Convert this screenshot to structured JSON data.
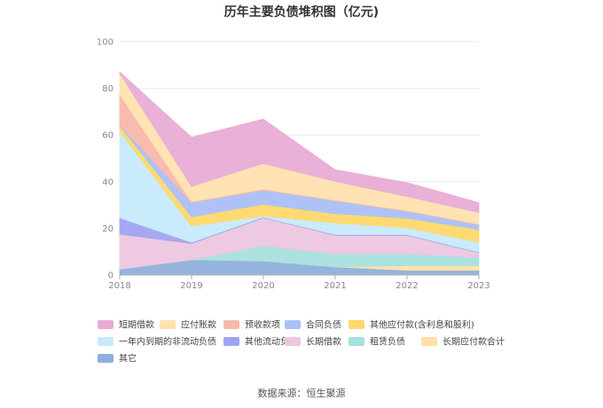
{
  "chart_data": {
    "type": "area",
    "stacked": true,
    "title": "历年主要负债堆积图（亿元)",
    "xlabel": "",
    "ylabel": "",
    "categories": [
      "2018",
      "2019",
      "2020",
      "2021",
      "2022",
      "2023"
    ],
    "ylim": [
      0,
      100
    ],
    "yticks": [
      0,
      20,
      40,
      60,
      80,
      100
    ],
    "grid": true,
    "legend_position": "bottom",
    "series": [
      {
        "name": "其它",
        "color": "#8eb0dc",
        "values": [
          2.5,
          6.5,
          6.0,
          3.5,
          2.0,
          2.0
        ]
      },
      {
        "name": "长期应付款合计",
        "color": "#ffe0a8",
        "values": [
          0,
          0,
          0,
          0,
          2.0,
          2.0
        ]
      },
      {
        "name": "租赁负债",
        "color": "#a6e0de",
        "values": [
          0,
          0,
          6.5,
          5.5,
          5.0,
          3.5
        ]
      },
      {
        "name": "长期借款",
        "color": "#edc6e0",
        "values": [
          15.0,
          7.0,
          12.0,
          8.0,
          8.0,
          2.0
        ]
      },
      {
        "name": "其他流动负债",
        "color": "#a0a4f0",
        "values": [
          7.0,
          0.5,
          0.3,
          0.3,
          0.3,
          0.3
        ]
      },
      {
        "name": "一年内到期的非流动负债",
        "color": "#c7eafb",
        "values": [
          37.0,
          7.0,
          0.5,
          5.0,
          3.0,
          4.2
        ]
      },
      {
        "name": "其他应付款(含利息和股利)",
        "color": "#ffd86a",
        "values": [
          2.5,
          4.0,
          5.0,
          4.0,
          4.0,
          5.5
        ]
      },
      {
        "name": "合同负债",
        "color": "#abbff8",
        "values": [
          0.5,
          6.0,
          6.0,
          5.5,
          3.0,
          2.0
        ]
      },
      {
        "name": "预收款项",
        "color": "#f8b8aa",
        "values": [
          13.0,
          0.5,
          0.5,
          0.3,
          0.3,
          0.3
        ]
      },
      {
        "name": "应付账款",
        "color": "#ffe2b0",
        "values": [
          9.0,
          6.5,
          11.0,
          8.0,
          6.0,
          5.0
        ]
      },
      {
        "name": "短期借款",
        "color": "#e8acd6",
        "values": [
          0.5,
          21.0,
          19.0,
          5.0,
          6.0,
          4.2
        ]
      }
    ],
    "legend_order": [
      "短期借款",
      "应付账款",
      "预收款项",
      "合同负债",
      "其他应付款(含利息和股利)",
      "一年内到期的非流动负债",
      "其他流动负债",
      "长期借款",
      "租赁负债",
      "长期应付款合计",
      "其它"
    ]
  },
  "source_text": "数据来源：恒生聚源"
}
